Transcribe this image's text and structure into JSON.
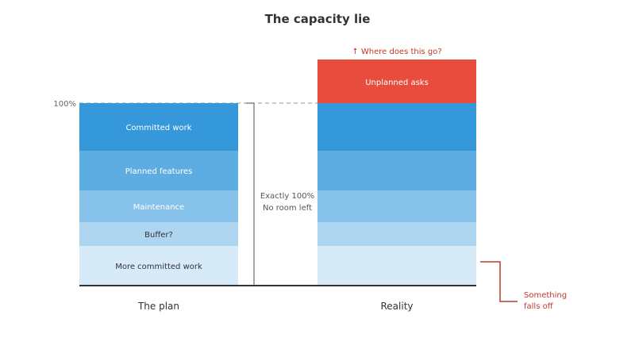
{
  "title": "The capacity lie",
  "colors": {
    "committed": "#3498db",
    "planned": "#5dade2",
    "maintenance": "#85c1e9",
    "buffer": "#aed6f1",
    "more_committed": "#d6eaf8",
    "unplanned": "#e74c3c",
    "warning": "#c0392b",
    "axis": "#333333",
    "divider": "#888888",
    "dashed": "#bbbbbb"
  },
  "capacity_label": "100%",
  "plan": {
    "label": "The plan",
    "segments": [
      {
        "name": "Committed work",
        "color_key": "committed"
      },
      {
        "name": "Planned features",
        "color_key": "planned"
      },
      {
        "name": "Maintenance",
        "color_key": "maintenance"
      },
      {
        "name": "Buffer?",
        "color_key": "buffer"
      },
      {
        "name": "More committed work",
        "color_key": "more_committed"
      }
    ]
  },
  "divider_note": [
    "Exactly 100%",
    "No room left"
  ],
  "reality": {
    "label": "Reality",
    "overflow": {
      "name": "Unplanned asks",
      "color_key": "unplanned"
    },
    "overflow_question": "↑ Where does this go?",
    "falls_off_note": [
      "Something",
      "falls off"
    ]
  }
}
